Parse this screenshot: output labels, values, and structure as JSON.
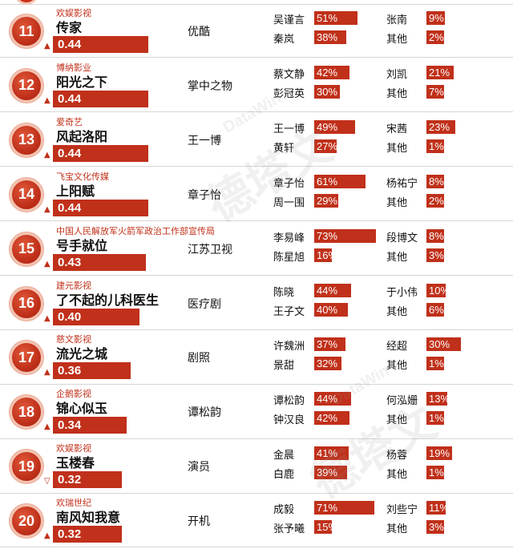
{
  "watermark": {
    "brand_en": "DataWin",
    "brand_cn": "德塔文"
  },
  "rows": [
    {
      "rank": "11",
      "producer": "欢娱影视",
      "title": "传家",
      "score": "0.44",
      "score_value": 0.44,
      "trend": "up",
      "platform": "优酷",
      "actor1": {
        "name": "吴谨言",
        "pct": "51%",
        "value": 51
      },
      "actor2": {
        "name": "秦岚",
        "pct": "38%",
        "value": 38
      },
      "actor3": {
        "name": "张南",
        "pct": "9%",
        "value": 9
      },
      "actor4": {
        "name": "其他",
        "pct": "2%",
        "value": 2
      }
    },
    {
      "rank": "12",
      "producer": "博纳影业",
      "title": "阳光之下",
      "score": "0.44",
      "score_value": 0.44,
      "trend": "up",
      "platform": "掌中之物",
      "actor1": {
        "name": "蔡文静",
        "pct": "42%",
        "value": 42
      },
      "actor2": {
        "name": "彭冠英",
        "pct": "30%",
        "value": 30
      },
      "actor3": {
        "name": "刘凯",
        "pct": "21%",
        "value": 21
      },
      "actor4": {
        "name": "其他",
        "pct": "7%",
        "value": 7
      }
    },
    {
      "rank": "13",
      "producer": "爱奇艺",
      "title": "风起洛阳",
      "score": "0.44",
      "score_value": 0.44,
      "trend": "up",
      "platform": "王一博",
      "actor1": {
        "name": "王一博",
        "pct": "49%",
        "value": 49
      },
      "actor2": {
        "name": "黄轩",
        "pct": "27%",
        "value": 27
      },
      "actor3": {
        "name": "宋茜",
        "pct": "23%",
        "value": 23
      },
      "actor4": {
        "name": "其他",
        "pct": "1%",
        "value": 1
      }
    },
    {
      "rank": "14",
      "producer": "飞宝文化传媒",
      "title": "上阳赋",
      "score": "0.44",
      "score_value": 0.44,
      "trend": "up",
      "platform": "章子怡",
      "actor1": {
        "name": "章子怡",
        "pct": "61%",
        "value": 61
      },
      "actor2": {
        "name": "周一围",
        "pct": "29%",
        "value": 29
      },
      "actor3": {
        "name": "杨祐宁",
        "pct": "8%",
        "value": 8
      },
      "actor4": {
        "name": "其他",
        "pct": "2%",
        "value": 2
      }
    },
    {
      "rank": "15",
      "producer": "中国人民解放军火箭军政治工作部宣传局",
      "title": "号手就位",
      "score": "0.43",
      "score_value": 0.43,
      "trend": "up",
      "platform": "江苏卫视",
      "actor1": {
        "name": "李易峰",
        "pct": "73%",
        "value": 73
      },
      "actor2": {
        "name": "陈星旭",
        "pct": "16%",
        "value": 16
      },
      "actor3": {
        "name": "段博文",
        "pct": "8%",
        "value": 8
      },
      "actor4": {
        "name": "其他",
        "pct": "3%",
        "value": 3
      }
    },
    {
      "rank": "16",
      "producer": "建元影视",
      "title": "了不起的儿科医生",
      "score": "0.40",
      "score_value": 0.4,
      "trend": "up",
      "platform": "医疗剧",
      "actor1": {
        "name": "陈晓",
        "pct": "44%",
        "value": 44
      },
      "actor2": {
        "name": "王子文",
        "pct": "40%",
        "value": 40
      },
      "actor3": {
        "name": "于小伟",
        "pct": "10%",
        "value": 10
      },
      "actor4": {
        "name": "其他",
        "pct": "6%",
        "value": 6
      }
    },
    {
      "rank": "17",
      "producer": "慈文影视",
      "title": "流光之城",
      "score": "0.36",
      "score_value": 0.36,
      "trend": "up",
      "platform": "剧照",
      "actor1": {
        "name": "许魏洲",
        "pct": "37%",
        "value": 37
      },
      "actor2": {
        "name": "景甜",
        "pct": "32%",
        "value": 32
      },
      "actor3": {
        "name": "经超",
        "pct": "30%",
        "value": 30
      },
      "actor4": {
        "name": "其他",
        "pct": "1%",
        "value": 1
      }
    },
    {
      "rank": "18",
      "producer": "企鹅影视",
      "title": "锦心似玉",
      "score": "0.34",
      "score_value": 0.34,
      "trend": "up",
      "platform": "谭松韵",
      "actor1": {
        "name": "谭松韵",
        "pct": "44%",
        "value": 44
      },
      "actor2": {
        "name": "钟汉良",
        "pct": "42%",
        "value": 42
      },
      "actor3": {
        "name": "何泓姗",
        "pct": "13%",
        "value": 13
      },
      "actor4": {
        "name": "其他",
        "pct": "1%",
        "value": 1
      }
    },
    {
      "rank": "19",
      "producer": "欢娱影视",
      "title": "玉楼春",
      "score": "0.32",
      "score_value": 0.32,
      "trend": "down",
      "platform": "演员",
      "actor1": {
        "name": "金晨",
        "pct": "41%",
        "value": 41
      },
      "actor2": {
        "name": "白鹿",
        "pct": "39%",
        "value": 39
      },
      "actor3": {
        "name": "杨蓉",
        "pct": "19%",
        "value": 19
      },
      "actor4": {
        "name": "其他",
        "pct": "1%",
        "value": 1
      }
    },
    {
      "rank": "20",
      "producer": "欢瑞世纪",
      "title": "南风知我意",
      "score": "0.32",
      "score_value": 0.32,
      "trend": "up",
      "platform": "开机",
      "actor1": {
        "name": "成毅",
        "pct": "71%",
        "value": 71
      },
      "actor2": {
        "name": "张予曦",
        "pct": "15%",
        "value": 15
      },
      "actor3": {
        "name": "刘些宁",
        "pct": "11%",
        "value": 11
      },
      "actor4": {
        "name": "其他",
        "pct": "3%",
        "value": 3
      }
    }
  ]
}
